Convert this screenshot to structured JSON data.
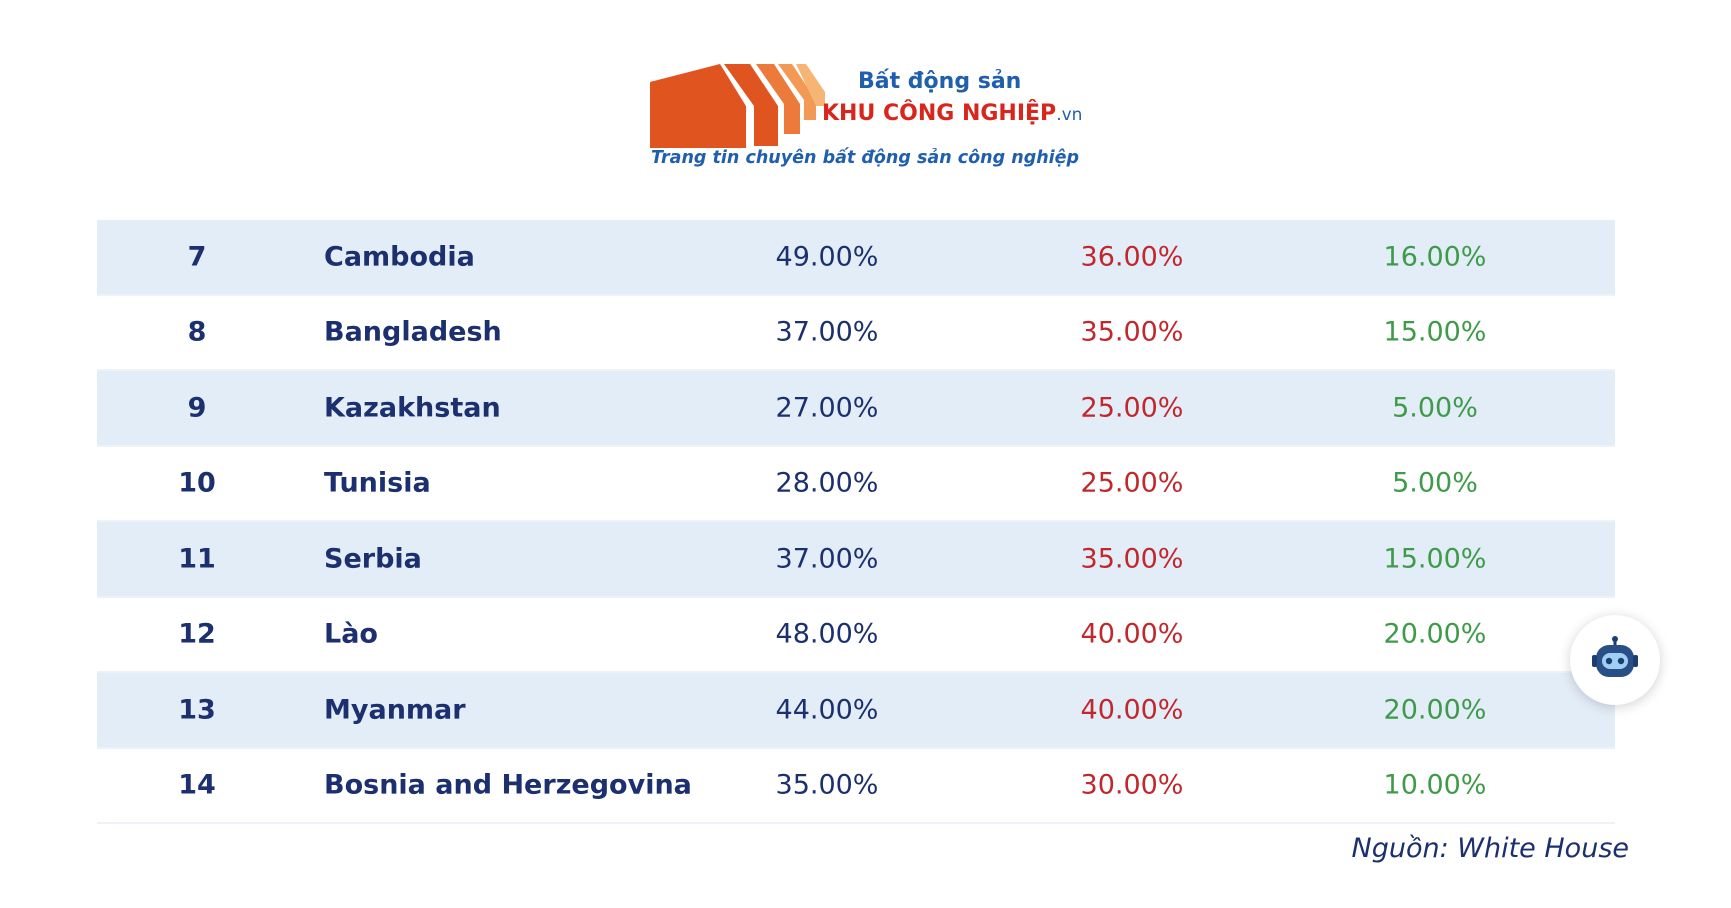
{
  "logo": {
    "line1": "Bất động sản",
    "line2_main": "KHU CÔNG NGHIỆP",
    "line2_tld": ".vn",
    "tagline": "Trang tin chuyên bất động sản công nghiệp",
    "colors": {
      "brand_blue": "#1f5fae",
      "brand_red": "#d9261c",
      "brand_orange": "#e0541f"
    }
  },
  "table": {
    "rows": [
      {
        "rank": "7",
        "country": "Cambodia",
        "col1": "49.00%",
        "col2": "36.00%",
        "col3": "16.00%"
      },
      {
        "rank": "8",
        "country": "Bangladesh",
        "col1": "37.00%",
        "col2": "35.00%",
        "col3": "15.00%"
      },
      {
        "rank": "9",
        "country": "Kazakhstan",
        "col1": "27.00%",
        "col2": "25.00%",
        "col3": "5.00%"
      },
      {
        "rank": "10",
        "country": "Tunisia",
        "col1": "28.00%",
        "col2": "25.00%",
        "col3": "5.00%"
      },
      {
        "rank": "11",
        "country": "Serbia",
        "col1": "37.00%",
        "col2": "35.00%",
        "col3": "15.00%"
      },
      {
        "rank": "12",
        "country": "Lào",
        "col1": "48.00%",
        "col2": "40.00%",
        "col3": "20.00%"
      },
      {
        "rank": "13",
        "country": "Myanmar",
        "col1": "44.00%",
        "col2": "40.00%",
        "col3": "20.00%"
      },
      {
        "rank": "14",
        "country": "Bosnia and Herzegovina",
        "col1": "35.00%",
        "col2": "30.00%",
        "col3": "10.00%"
      }
    ],
    "colors": {
      "text_navy": "#1c2f6e",
      "col2_red": "#c0282d",
      "col3_green": "#3e9b49",
      "shade_blue": "#e3edf8"
    }
  },
  "source": "Nguồn: White House",
  "chat_widget": {
    "icon": "chatbot-icon"
  }
}
